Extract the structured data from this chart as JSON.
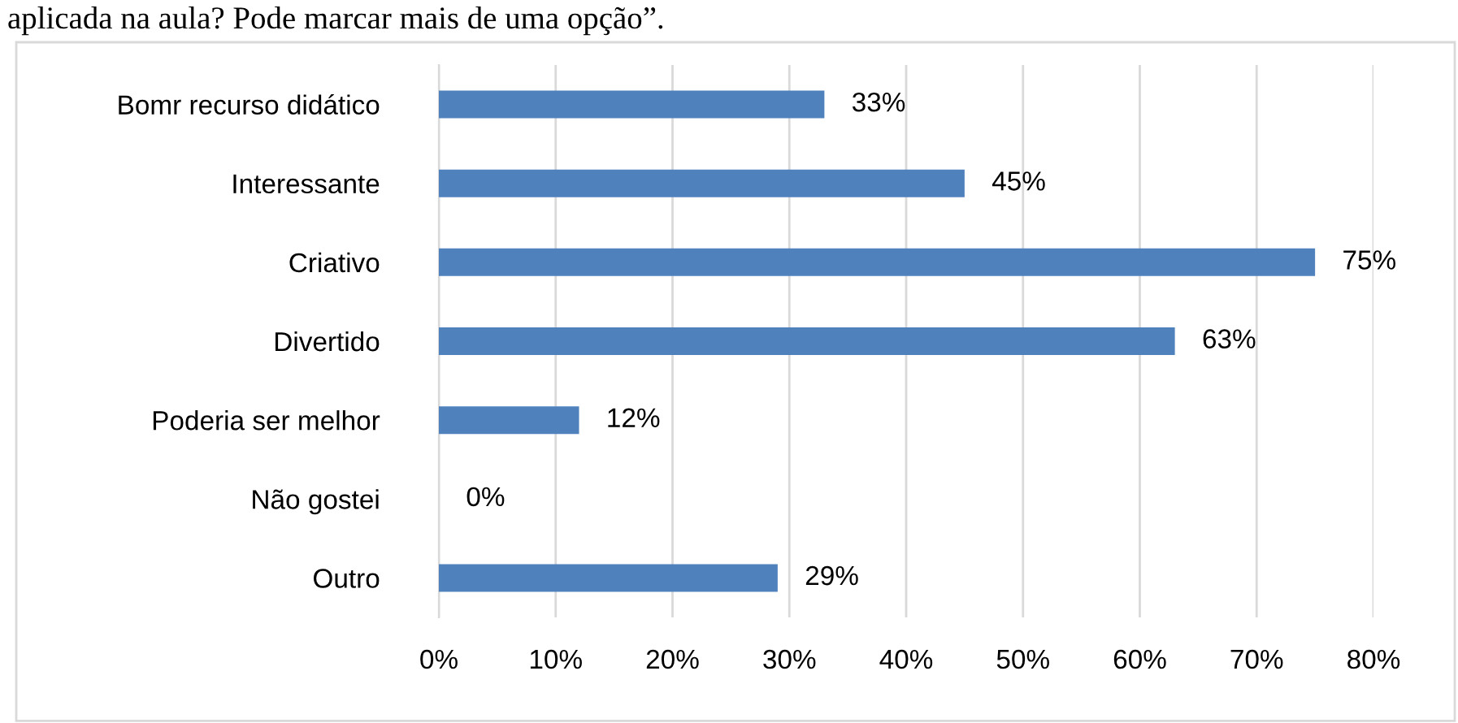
{
  "chart_data": {
    "type": "bar",
    "orientation": "horizontal",
    "title": "aplicada na aula? Pode marcar mais de uma opção”.",
    "categories": [
      "Bomr recurso didático",
      "Interessante",
      "Criativo",
      "Divertido",
      "Poderia ser melhor",
      "Não gostei",
      "Outro"
    ],
    "values": [
      33,
      45,
      75,
      63,
      12,
      0,
      29
    ],
    "value_labels": [
      "33%",
      "45%",
      "75%",
      "63%",
      "12%",
      "0%",
      "29%"
    ],
    "color": "#4f81bd",
    "xlim": [
      0,
      80
    ],
    "xticks": [
      {
        "value": 0,
        "label": "0%"
      },
      {
        "value": 10,
        "label": "10%"
      },
      {
        "value": 20,
        "label": "20%"
      },
      {
        "value": 30,
        "label": "30%"
      },
      {
        "value": 40,
        "label": "40%"
      },
      {
        "value": 50,
        "label": "50%"
      },
      {
        "value": 60,
        "label": "60%"
      },
      {
        "value": 70,
        "label": "70%"
      },
      {
        "value": 80,
        "label": "80%"
      }
    ],
    "grid": "x",
    "legend": false
  }
}
